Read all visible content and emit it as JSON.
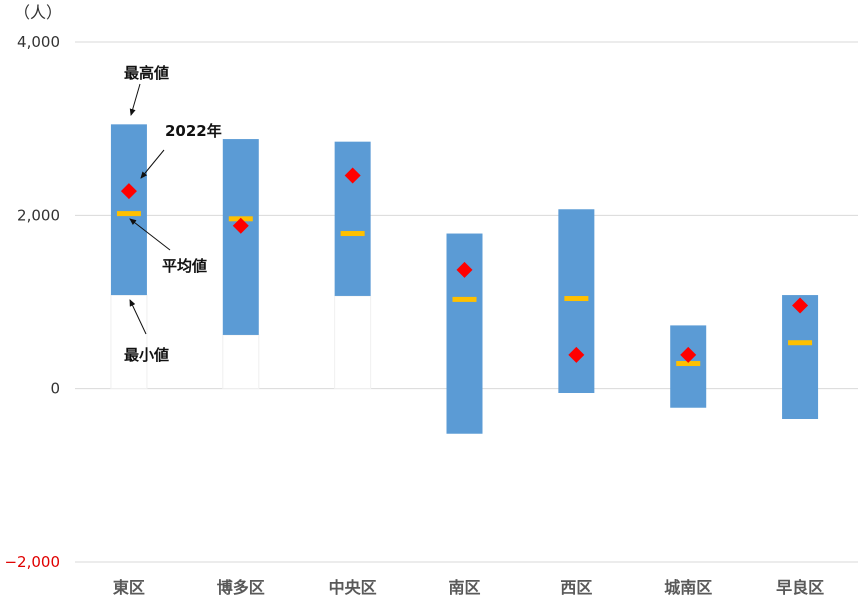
{
  "chart_data": {
    "type": "floating-bar",
    "unit_label": "（人）",
    "categories": [
      "東区",
      "博多区",
      "中央区",
      "南区",
      "西区",
      "城南区",
      "早良区"
    ],
    "min": [
      1080,
      620,
      1070,
      -520,
      -50,
      -220,
      -350
    ],
    "max": [
      3050,
      2880,
      2850,
      1790,
      2070,
      730,
      1080
    ],
    "average": [
      2020,
      1960,
      1790,
      1030,
      1040,
      290,
      530
    ],
    "year_2022": [
      2280,
      1880,
      2460,
      1370,
      390,
      390,
      960
    ],
    "ylim": [
      -2000,
      4000
    ],
    "yticks": [
      "4,000",
      "2,000",
      "0",
      "−2,000"
    ],
    "ytick_values": [
      4000,
      2000,
      0,
      -2000
    ],
    "annotations": {
      "max": "最高値",
      "year": "2022年",
      "avg": "平均値",
      "min": "最小値"
    },
    "colors": {
      "bar": "#5b9bd5",
      "average": "#ffc000",
      "year": "#ff0000",
      "grid": "#d9d9d9",
      "negative_tick": "#e00000"
    },
    "grid": true
  }
}
